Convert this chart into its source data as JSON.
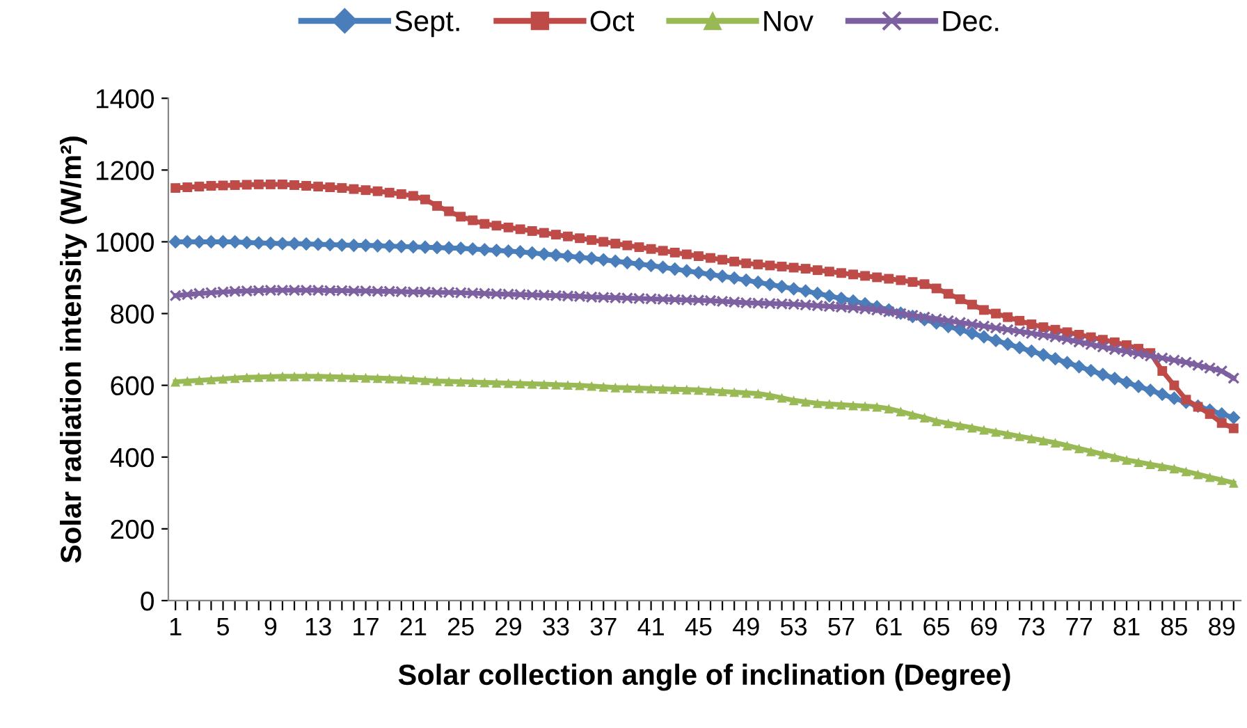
{
  "chart_data": {
    "type": "line",
    "xlabel": "Solar collection angle of inclination (Degree)",
    "ylabel": "Solar radiation intensity (W/m²)",
    "categories": [
      "1",
      null,
      null,
      null,
      "5",
      null,
      null,
      null,
      "9",
      null,
      null,
      null,
      "13",
      null,
      null,
      null,
      "17",
      null,
      null,
      null,
      "21",
      null,
      null,
      null,
      "25",
      null,
      null,
      null,
      "29",
      null,
      null,
      null,
      "33",
      null,
      null,
      null,
      "37",
      null,
      null,
      null,
      "41",
      null,
      null,
      null,
      "45",
      null,
      null,
      null,
      "49",
      null,
      null,
      null,
      "53",
      null,
      null,
      null,
      "57",
      null,
      null,
      null,
      "61",
      null,
      null,
      null,
      "65",
      null,
      null,
      null,
      "69",
      null,
      null,
      null,
      "73",
      null,
      null,
      null,
      "77",
      null,
      null,
      null,
      "81",
      null,
      null,
      null,
      "85",
      null,
      null,
      null,
      "89",
      null
    ],
    "ylim": [
      0,
      1400
    ],
    "yticks": [
      0,
      200,
      400,
      600,
      800,
      1000,
      1200,
      1400
    ],
    "grid": false,
    "legend": "top",
    "series": [
      {
        "name": "Sept.",
        "color": "#4a7ebb",
        "marker": "diamond",
        "values": [
          1000,
          1000,
          1000,
          1000,
          1000,
          1000,
          998,
          997,
          996,
          995,
          995,
          994,
          993,
          992,
          991,
          990,
          990,
          989,
          988,
          987,
          986,
          985,
          984,
          983,
          982,
          980,
          978,
          976,
          974,
          972,
          969,
          966,
          963,
          960,
          957,
          954,
          950,
          946,
          942,
          938,
          934,
          929,
          924,
          919,
          914,
          909,
          904,
          899,
          893,
          887,
          881,
          875,
          869,
          863,
          856,
          849,
          842,
          835,
          827,
          819,
          810,
          801,
          792,
          783,
          774,
          764,
          755,
          745,
          735,
          725,
          715,
          705,
          695,
          685,
          674,
          663,
          652,
          641,
          630,
          619,
          608,
          597,
          586,
          575,
          564,
          553,
          542,
          531,
          520,
          510
        ]
      },
      {
        "name": "Oct",
        "color": "#be4b48",
        "marker": "square",
        "values": [
          1150,
          1152,
          1154,
          1156,
          1157,
          1158,
          1159,
          1160,
          1160,
          1160,
          1158,
          1156,
          1154,
          1152,
          1150,
          1147,
          1144,
          1141,
          1137,
          1133,
          1128,
          1118,
          1100,
          1085,
          1070,
          1060,
          1050,
          1045,
          1040,
          1035,
          1030,
          1025,
          1020,
          1015,
          1010,
          1005,
          1000,
          995,
          990,
          985,
          980,
          975,
          970,
          965,
          960,
          955,
          950,
          945,
          940,
          937,
          934,
          931,
          928,
          925,
          921,
          917,
          913,
          909,
          905,
          901,
          897,
          893,
          888,
          882,
          870,
          855,
          840,
          825,
          810,
          800,
          790,
          780,
          770,
          762,
          755,
          748,
          741,
          734,
          727,
          720,
          712,
          702,
          690,
          640,
          600,
          560,
          540,
          520,
          495,
          480
        ]
      },
      {
        "name": "Nov",
        "color": "#98b954",
        "marker": "triangle",
        "values": [
          610,
          612,
          614,
          616,
          618,
          620,
          622,
          623,
          624,
          625,
          625,
          625,
          625,
          624,
          623,
          622,
          621,
          620,
          619,
          618,
          616,
          614,
          612,
          611,
          610,
          609,
          608,
          607,
          606,
          605,
          604,
          603,
          602,
          601,
          600,
          598,
          596,
          594,
          593,
          592,
          591,
          590,
          589,
          588,
          587,
          585,
          583,
          581,
          579,
          577,
          572,
          565,
          558,
          554,
          550,
          548,
          546,
          544,
          542,
          540,
          535,
          527,
          518,
          510,
          500,
          494,
          488,
          482,
          476,
          470,
          464,
          458,
          452,
          446,
          440,
          432,
          424,
          416,
          408,
          400,
          392,
          386,
          380,
          374,
          368,
          360,
          352,
          344,
          336,
          328
        ]
      },
      {
        "name": "Dec.",
        "color": "#7d60a0",
        "marker": "cross",
        "values": [
          850,
          853,
          856,
          858,
          860,
          862,
          863,
          864,
          865,
          865,
          865,
          865,
          865,
          864,
          864,
          863,
          863,
          862,
          862,
          861,
          860,
          860,
          859,
          859,
          858,
          857,
          856,
          855,
          854,
          853,
          852,
          851,
          850,
          849,
          848,
          846,
          845,
          844,
          843,
          842,
          841,
          840,
          839,
          838,
          837,
          836,
          834,
          832,
          830,
          829,
          828,
          827,
          826,
          824,
          822,
          820,
          818,
          816,
          813,
          810,
          805,
          800,
          795,
          790,
          785,
          780,
          775,
          770,
          765,
          760,
          755,
          750,
          745,
          740,
          735,
          728,
          721,
          714,
          707,
          700,
          694,
          688,
          682,
          676,
          670,
          664,
          656,
          648,
          640,
          620
        ]
      }
    ]
  }
}
